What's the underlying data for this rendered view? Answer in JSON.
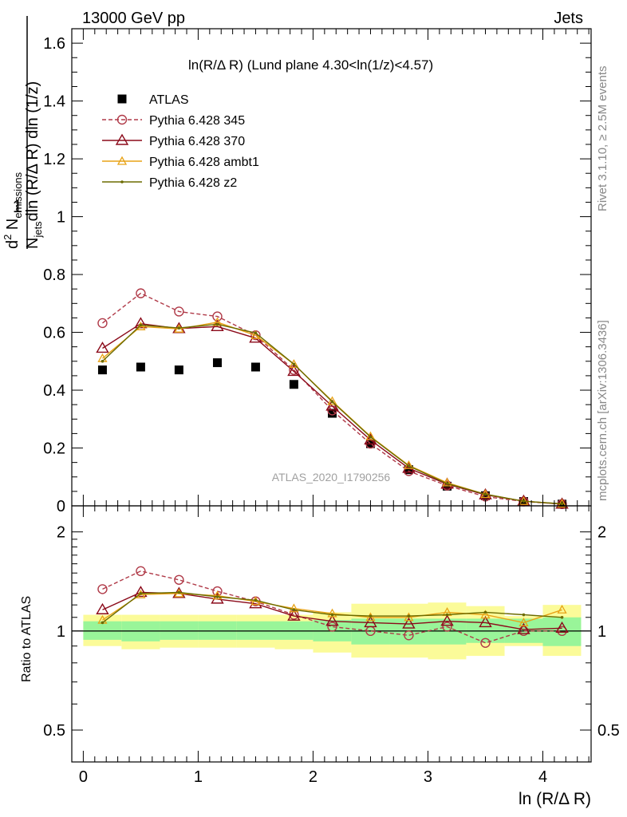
{
  "header": {
    "left": "13000 GeV pp",
    "right": "Jets",
    "side_rivet": "Rivet 3.1.10, ≥ 2.5M events",
    "side_mcplots": "mcplots.cern.ch [arXiv:1306.3436]",
    "watermark": "ATLAS_2020_I1790256"
  },
  "colors": {
    "atlas": "#000000",
    "p345": "#b03a48",
    "p370": "#8b0a1a",
    "ambt1": "#e8a317",
    "z2": "#6b6b00",
    "band_green": "#99f599",
    "band_yellow": "#fbfb99"
  },
  "chart_data": [
    {
      "type": "scatter",
      "title": "ln(R/Δ R) (Lund plane 4.30<ln(1/z)<4.57)",
      "ylabel": "1/N_jets d²N_emissions / dln(R/Δ R) dln(1/z)",
      "xlim": [
        -0.1,
        4.42
      ],
      "ylim": [
        0,
        1.65
      ],
      "yticks": [
        0,
        0.2,
        0.4,
        0.6,
        0.8,
        1,
        1.2,
        1.4,
        1.6
      ],
      "ytick_labels": [
        "0",
        "0.2",
        "0.4",
        "0.6",
        "0.8",
        "1",
        "1.2",
        "1.4",
        "1.6"
      ],
      "legend_position": "top-left",
      "x": [
        0.167,
        0.5,
        0.833,
        1.167,
        1.5,
        1.833,
        2.167,
        2.5,
        2.833,
        3.167,
        3.5,
        3.833,
        4.167
      ],
      "series": [
        {
          "name": "ATLAS",
          "key": "atlas",
          "marker": "square",
          "line": "none",
          "values": [
            0.47,
            0.48,
            0.47,
            0.495,
            0.48,
            0.42,
            0.32,
            0.215,
            0.125,
            0.068,
            0.035,
            0.015,
            0.006
          ]
        },
        {
          "name": "Pythia 6.428 345",
          "key": "p345",
          "marker": "circle",
          "line": "dashed",
          "values": [
            0.632,
            0.735,
            0.672,
            0.655,
            0.59,
            0.47,
            0.33,
            0.215,
            0.12,
            0.07,
            0.032,
            0.015,
            0.006
          ]
        },
        {
          "name": "Pythia 6.428 370",
          "key": "p370",
          "marker": "triangle",
          "line": "solid",
          "values": [
            0.545,
            0.63,
            0.613,
            0.62,
            0.58,
            0.465,
            0.345,
            0.228,
            0.13,
            0.075,
            0.038,
            0.016,
            0.006
          ]
        },
        {
          "name": "Pythia 6.428 ambt1",
          "key": "ambt1",
          "marker": "triangle-small",
          "line": "solid",
          "values": [
            0.51,
            0.62,
            0.612,
            0.635,
            0.59,
            0.49,
            0.362,
            0.24,
            0.14,
            0.08,
            0.04,
            0.016,
            0.007
          ]
        },
        {
          "name": "Pythia 6.428 z2",
          "key": "z2",
          "marker": "dot",
          "line": "solid",
          "values": [
            0.5,
            0.625,
            0.615,
            0.628,
            0.598,
            0.49,
            0.36,
            0.238,
            0.138,
            0.077,
            0.04,
            0.016,
            0.007
          ]
        }
      ]
    },
    {
      "type": "line",
      "xlabel": "ln (R/Δ R)",
      "ylabel": "Ratio to ATLAS",
      "xlim": [
        -0.1,
        4.42
      ],
      "ylim": [
        0.4,
        2.4
      ],
      "log_y": true,
      "xticks": [
        0,
        1,
        2,
        3,
        4
      ],
      "xtick_labels": [
        "0",
        "1",
        "2",
        "3",
        "4"
      ],
      "yticks": [
        0.5,
        1,
        2
      ],
      "ytick_labels": [
        "0.5",
        "1",
        "2"
      ],
      "reference_line": 1,
      "bins": [
        [
          0,
          0.333
        ],
        [
          0.333,
          0.667
        ],
        [
          0.667,
          1.0
        ],
        [
          1.0,
          1.333
        ],
        [
          1.333,
          1.667
        ],
        [
          1.667,
          2.0
        ],
        [
          2.0,
          2.333
        ],
        [
          2.333,
          2.667
        ],
        [
          2.667,
          3.0
        ],
        [
          3.0,
          3.333
        ],
        [
          3.333,
          3.667
        ],
        [
          3.667,
          4.0
        ],
        [
          4.0,
          4.333
        ]
      ],
      "band_green": [
        [
          0.94,
          1.07
        ],
        [
          0.93,
          1.07
        ],
        [
          0.94,
          1.07
        ],
        [
          0.94,
          1.07
        ],
        [
          0.94,
          1.07
        ],
        [
          0.94,
          1.07
        ],
        [
          0.93,
          1.08
        ],
        [
          0.91,
          1.09
        ],
        [
          0.91,
          1.09
        ],
        [
          0.91,
          1.09
        ],
        [
          0.92,
          1.09
        ],
        [
          0.92,
          1.09
        ],
        [
          0.9,
          1.1
        ]
      ],
      "band_yellow": [
        [
          0.9,
          1.12
        ],
        [
          0.88,
          1.12
        ],
        [
          0.89,
          1.12
        ],
        [
          0.89,
          1.12
        ],
        [
          0.89,
          1.12
        ],
        [
          0.88,
          1.12
        ],
        [
          0.86,
          1.14
        ],
        [
          0.83,
          1.21
        ],
        [
          0.83,
          1.21
        ],
        [
          0.82,
          1.22
        ],
        [
          0.84,
          1.19
        ],
        [
          0.9,
          1.11
        ],
        [
          0.84,
          1.2
        ]
      ],
      "x": [
        0.167,
        0.5,
        0.833,
        1.167,
        1.5,
        1.833,
        2.167,
        2.5,
        2.833,
        3.167,
        3.5,
        3.833,
        4.167
      ],
      "series": [
        {
          "name": "Pythia 6.428 345",
          "key": "p345",
          "marker": "circle",
          "line": "dashed",
          "values": [
            1.34,
            1.52,
            1.43,
            1.32,
            1.23,
            1.12,
            1.03,
            1.0,
            0.97,
            1.03,
            0.92,
            1.0,
            1.0
          ]
        },
        {
          "name": "Pythia 6.428 370",
          "key": "p370",
          "marker": "triangle",
          "line": "solid",
          "values": [
            1.16,
            1.31,
            1.3,
            1.25,
            1.21,
            1.11,
            1.07,
            1.06,
            1.05,
            1.07,
            1.06,
            1.01,
            1.02
          ]
        },
        {
          "name": "Pythia 6.428 ambt1",
          "key": "ambt1",
          "marker": "triangle-small",
          "line": "solid",
          "values": [
            1.08,
            1.29,
            1.3,
            1.28,
            1.23,
            1.17,
            1.13,
            1.1,
            1.1,
            1.14,
            1.12,
            1.06,
            1.16
          ]
        },
        {
          "name": "Pythia 6.428 z2",
          "key": "z2",
          "marker": "dot",
          "line": "solid",
          "values": [
            1.06,
            1.3,
            1.31,
            1.27,
            1.24,
            1.16,
            1.12,
            1.11,
            1.11,
            1.12,
            1.14,
            1.12,
            1.1
          ]
        }
      ]
    }
  ]
}
